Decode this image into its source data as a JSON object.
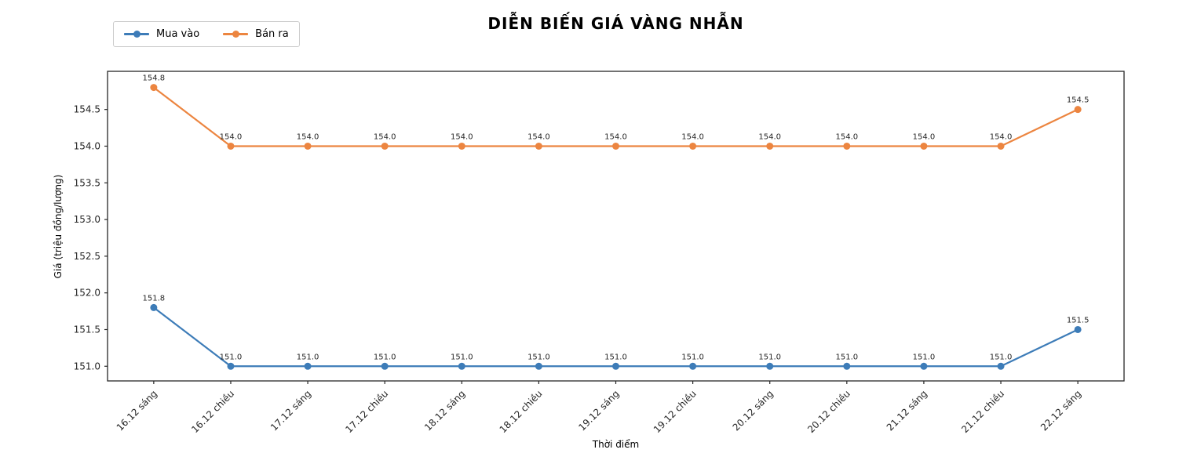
{
  "chart_data": {
    "type": "line",
    "title": "DIỄN BIẾN GIÁ VÀNG NHẪN",
    "xlabel": "Thời điểm",
    "ylabel": "Giá (triệu đồng/lượng)",
    "categories": [
      "16.12 sáng",
      "16.12 chiều",
      "17.12 sáng",
      "17.12 chiều",
      "18.12 sáng",
      "18.12 chiều",
      "19.12 sáng",
      "19.12 chiều",
      "20.12 sáng",
      "20.12 chiều",
      "21.12 sáng",
      "21.12 chiều",
      "22.12 sáng"
    ],
    "series": [
      {
        "name": "Mua vào",
        "color": "#3d7cb8",
        "values": [
          151.8,
          151.0,
          151.0,
          151.0,
          151.0,
          151.0,
          151.0,
          151.0,
          151.0,
          151.0,
          151.0,
          151.0,
          151.5
        ]
      },
      {
        "name": "Bán ra",
        "color": "#ec8540",
        "values": [
          154.8,
          154.0,
          154.0,
          154.0,
          154.0,
          154.0,
          154.0,
          154.0,
          154.0,
          154.0,
          154.0,
          154.0,
          154.5
        ]
      }
    ],
    "yticks": [
      151.0,
      151.5,
      152.0,
      152.5,
      153.0,
      153.5,
      154.0,
      154.5
    ],
    "ylim": [
      150.8,
      155.02
    ],
    "grid": false,
    "legend_position": "top-left",
    "point_labels": true,
    "point_label_decimals": 1,
    "axis_color": "#262626"
  }
}
